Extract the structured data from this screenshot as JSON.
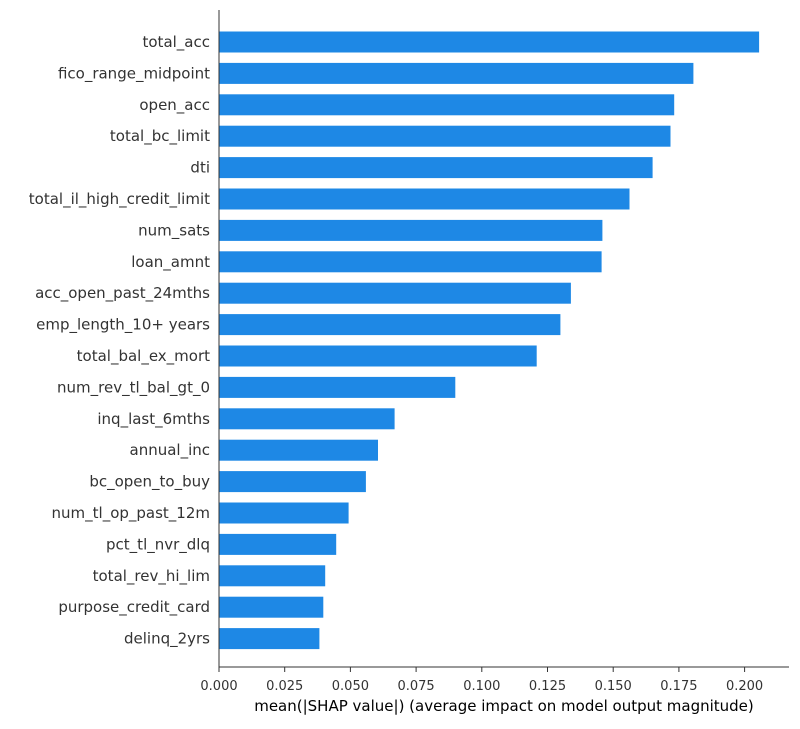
{
  "chart_data": {
    "type": "bar",
    "orientation": "horizontal",
    "xlabel": "mean(|SHAP value|) (average impact on model output magnitude)",
    "xlim": [
      0,
      0.215
    ],
    "xticks": [
      "0.000",
      "0.025",
      "0.050",
      "0.075",
      "0.100",
      "0.125",
      "0.150",
      "0.175",
      "0.200"
    ],
    "grid": false,
    "bar_color": "#1E88E5",
    "categories": [
      "total_acc",
      "fico_range_midpoint",
      "open_acc",
      "total_bc_limit",
      "dti",
      "total_il_high_credit_limit",
      "num_sats",
      "loan_amnt",
      "acc_open_past_24mths",
      "emp_length_10+ years",
      "total_bal_ex_mort",
      "num_rev_tl_bal_gt_0",
      "inq_last_6mths",
      "annual_inc",
      "bc_open_to_buy",
      "num_tl_op_past_12m",
      "pct_tl_nvr_dlq",
      "total_rev_hi_lim",
      "purpose_credit_card",
      "delinq_2yrs"
    ],
    "values": [
      0.2055,
      0.1805,
      0.1732,
      0.1718,
      0.165,
      0.1562,
      0.1459,
      0.1456,
      0.1339,
      0.1299,
      0.1209,
      0.0899,
      0.0668,
      0.0605,
      0.0559,
      0.0493,
      0.0446,
      0.0404,
      0.0397,
      0.0382
    ]
  }
}
